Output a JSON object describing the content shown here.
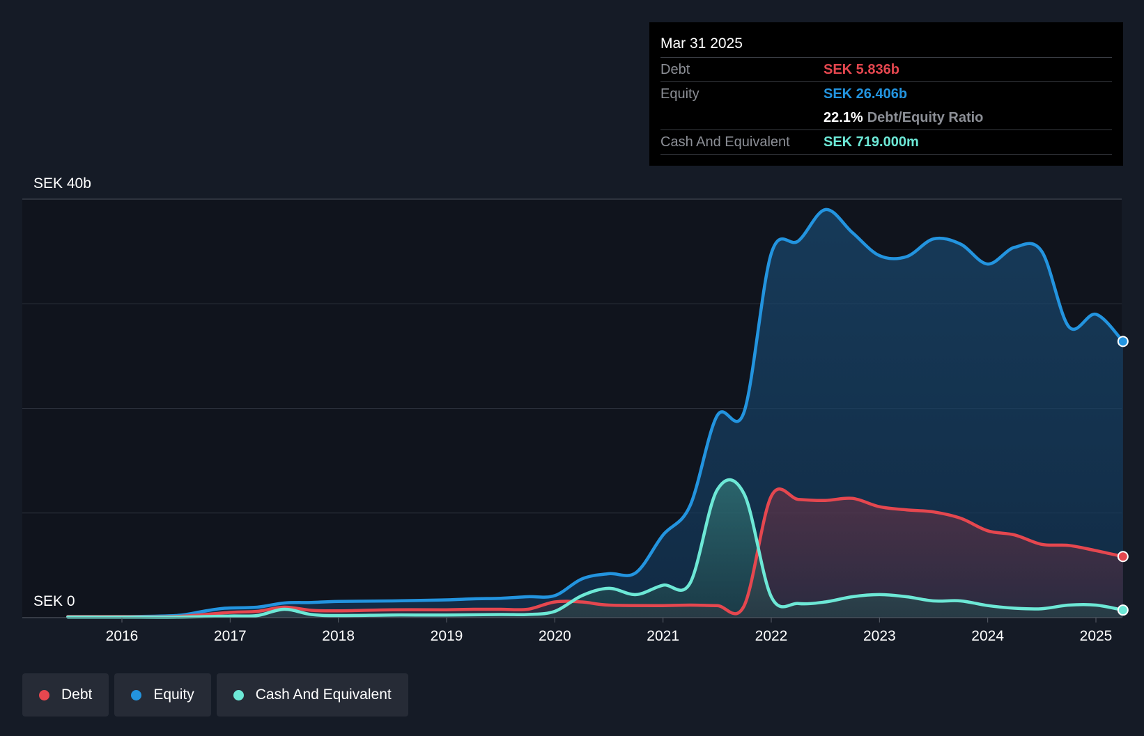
{
  "tooltip": {
    "date": "Mar 31 2025",
    "rows": [
      {
        "label": "Debt",
        "value": "SEK 5.836b"
      },
      {
        "label": "Equity",
        "value": "SEK 26.406b"
      },
      {
        "label": "",
        "value": "22.1%",
        "extra": "Debt/Equity Ratio"
      },
      {
        "label": "Cash And Equivalent",
        "value": "SEK 719.000m"
      }
    ]
  },
  "legend": [
    {
      "label": "Debt",
      "color": "#e5474f"
    },
    {
      "label": "Equity",
      "color": "#2394df"
    },
    {
      "label": "Cash And Equivalent",
      "color": "#6de8d6"
    }
  ],
  "chart_data": {
    "type": "area",
    "y_top_label": "SEK 40b",
    "y_bottom_label": "SEK 0",
    "ylim": [
      0,
      40
    ],
    "xlim": [
      2015.1,
      2025.25
    ],
    "x_ticks": [
      2016,
      2017,
      2018,
      2019,
      2020,
      2021,
      2022,
      2023,
      2024,
      2025
    ],
    "x_tick_labels": [
      "2016",
      "2017",
      "2018",
      "2019",
      "2020",
      "2021",
      "2022",
      "2023",
      "2024",
      "2025"
    ],
    "series": [
      {
        "name": "Equity",
        "color": "#2394df",
        "points": [
          [
            2015.5,
            0.1
          ],
          [
            2016.0,
            0.1
          ],
          [
            2016.5,
            0.2
          ],
          [
            2016.75,
            0.6
          ],
          [
            2016.95,
            0.9
          ],
          [
            2017.25,
            1.0
          ],
          [
            2017.5,
            1.4
          ],
          [
            2017.75,
            1.45
          ],
          [
            2018.0,
            1.55
          ],
          [
            2018.5,
            1.6
          ],
          [
            2019.0,
            1.7
          ],
          [
            2019.25,
            1.8
          ],
          [
            2019.5,
            1.85
          ],
          [
            2019.75,
            2.0
          ],
          [
            2020.0,
            2.1
          ],
          [
            2020.25,
            3.7
          ],
          [
            2020.5,
            4.2
          ],
          [
            2020.75,
            4.3
          ],
          [
            2021.0,
            7.9
          ],
          [
            2021.25,
            10.7
          ],
          [
            2021.5,
            19.3
          ],
          [
            2021.75,
            19.7
          ],
          [
            2022.0,
            34.8
          ],
          [
            2022.25,
            36.0
          ],
          [
            2022.5,
            39.0
          ],
          [
            2022.75,
            36.8
          ],
          [
            2023.0,
            34.6
          ],
          [
            2023.25,
            34.5
          ],
          [
            2023.5,
            36.2
          ],
          [
            2023.75,
            35.7
          ],
          [
            2024.0,
            33.8
          ],
          [
            2024.25,
            35.4
          ],
          [
            2024.5,
            35.0
          ],
          [
            2024.75,
            27.8
          ],
          [
            2025.0,
            29.0
          ],
          [
            2025.25,
            26.4
          ]
        ]
      },
      {
        "name": "Debt",
        "color": "#e5474f",
        "points": [
          [
            2015.5,
            0.1
          ],
          [
            2016.0,
            0.1
          ],
          [
            2016.5,
            0.1
          ],
          [
            2017.0,
            0.5
          ],
          [
            2017.25,
            0.6
          ],
          [
            2017.5,
            1.0
          ],
          [
            2017.75,
            0.7
          ],
          [
            2018.0,
            0.65
          ],
          [
            2018.5,
            0.75
          ],
          [
            2019.0,
            0.75
          ],
          [
            2019.25,
            0.8
          ],
          [
            2019.5,
            0.8
          ],
          [
            2019.75,
            0.8
          ],
          [
            2020.0,
            1.5
          ],
          [
            2020.25,
            1.5
          ],
          [
            2020.5,
            1.2
          ],
          [
            2021.0,
            1.15
          ],
          [
            2021.25,
            1.2
          ],
          [
            2021.5,
            1.15
          ],
          [
            2021.75,
            1.15
          ],
          [
            2022.0,
            11.6
          ],
          [
            2022.25,
            11.3
          ],
          [
            2022.5,
            11.2
          ],
          [
            2022.75,
            11.4
          ],
          [
            2023.0,
            10.6
          ],
          [
            2023.25,
            10.3
          ],
          [
            2023.5,
            10.1
          ],
          [
            2023.75,
            9.5
          ],
          [
            2024.0,
            8.3
          ],
          [
            2024.25,
            7.9
          ],
          [
            2024.5,
            7.0
          ],
          [
            2024.75,
            6.9
          ],
          [
            2025.0,
            6.4
          ],
          [
            2025.25,
            5.84
          ]
        ]
      },
      {
        "name": "Cash And Equivalent",
        "color": "#6de8d6",
        "points": [
          [
            2015.5,
            0.05
          ],
          [
            2016.0,
            0.05
          ],
          [
            2016.5,
            0.05
          ],
          [
            2017.0,
            0.15
          ],
          [
            2017.25,
            0.2
          ],
          [
            2017.5,
            0.8
          ],
          [
            2017.75,
            0.3
          ],
          [
            2018.0,
            0.2
          ],
          [
            2018.5,
            0.25
          ],
          [
            2019.0,
            0.25
          ],
          [
            2019.5,
            0.3
          ],
          [
            2019.75,
            0.3
          ],
          [
            2020.0,
            0.6
          ],
          [
            2020.25,
            2.1
          ],
          [
            2020.5,
            2.8
          ],
          [
            2020.75,
            2.2
          ],
          [
            2021.0,
            3.1
          ],
          [
            2021.25,
            3.3
          ],
          [
            2021.5,
            12.2
          ],
          [
            2021.75,
            11.8
          ],
          [
            2022.0,
            2.0
          ],
          [
            2022.25,
            1.35
          ],
          [
            2022.5,
            1.5
          ],
          [
            2022.75,
            2.0
          ],
          [
            2023.0,
            2.2
          ],
          [
            2023.25,
            2.0
          ],
          [
            2023.5,
            1.6
          ],
          [
            2023.75,
            1.6
          ],
          [
            2024.0,
            1.15
          ],
          [
            2024.25,
            0.9
          ],
          [
            2024.5,
            0.85
          ],
          [
            2024.75,
            1.2
          ],
          [
            2025.0,
            1.2
          ],
          [
            2025.25,
            0.72
          ]
        ]
      }
    ],
    "grid": true,
    "legend_position": "bottom-left"
  }
}
